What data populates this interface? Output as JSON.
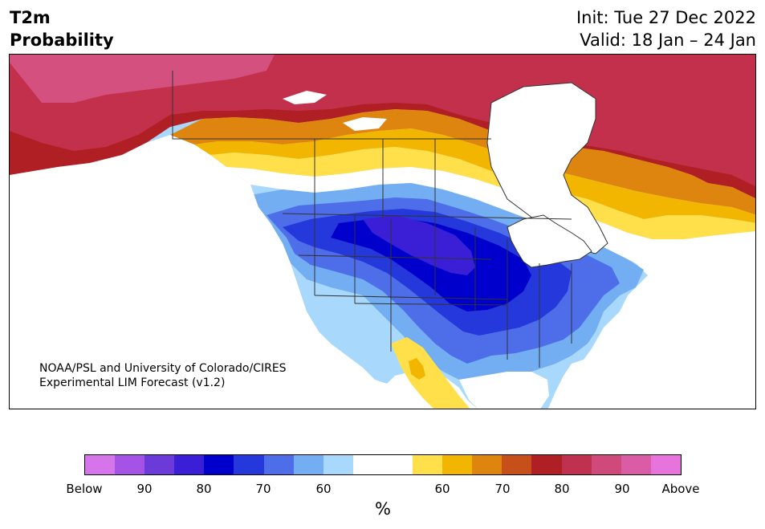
{
  "header": {
    "variable": "T2m",
    "product": "Probability",
    "init": "Init: Tue 27 Dec 2022",
    "valid": "Valid: 18 Jan – 24 Jan"
  },
  "credit": {
    "line1": "NOAA/PSL and University of Colorado/CIRES",
    "line2": "Experimental LIM Forecast (v1.2)"
  },
  "colorbar": {
    "unit": "%",
    "colors": [
      "#d674ea",
      "#a552e6",
      "#6c3ad9",
      "#3a1fd6",
      "#0000cc",
      "#2538db",
      "#4d6ee8",
      "#73aef2",
      "#a8d8fb",
      "#ffffff",
      "#ffffff",
      "#ffe04a",
      "#f2b600",
      "#de8510",
      "#c74f1a",
      "#b01f24",
      "#c0304f",
      "#cf4a7a",
      "#db5ca6",
      "#e674dc"
    ],
    "labels": [
      "Below",
      "90",
      "80",
      "70",
      "60",
      "60",
      "70",
      "80",
      "90",
      "Above"
    ]
  },
  "map": {
    "colors": {
      "above_90": "#d4517f",
      "above_80": "#c2304b",
      "above_70": "#b01f24",
      "above_60": "#c74f1a",
      "above_50": "#de8510",
      "above_40": "#f2b600",
      "above_30": "#ffe04a",
      "neutral": "#ffffff",
      "below_30": "#a8d8fb",
      "below_40": "#73aef2",
      "below_50": "#4d6ee8",
      "below_60": "#2538db",
      "below_70": "#0000cc",
      "below_80": "#3a1fd6",
      "ocean": "#ffffff",
      "border": "#333333"
    }
  }
}
